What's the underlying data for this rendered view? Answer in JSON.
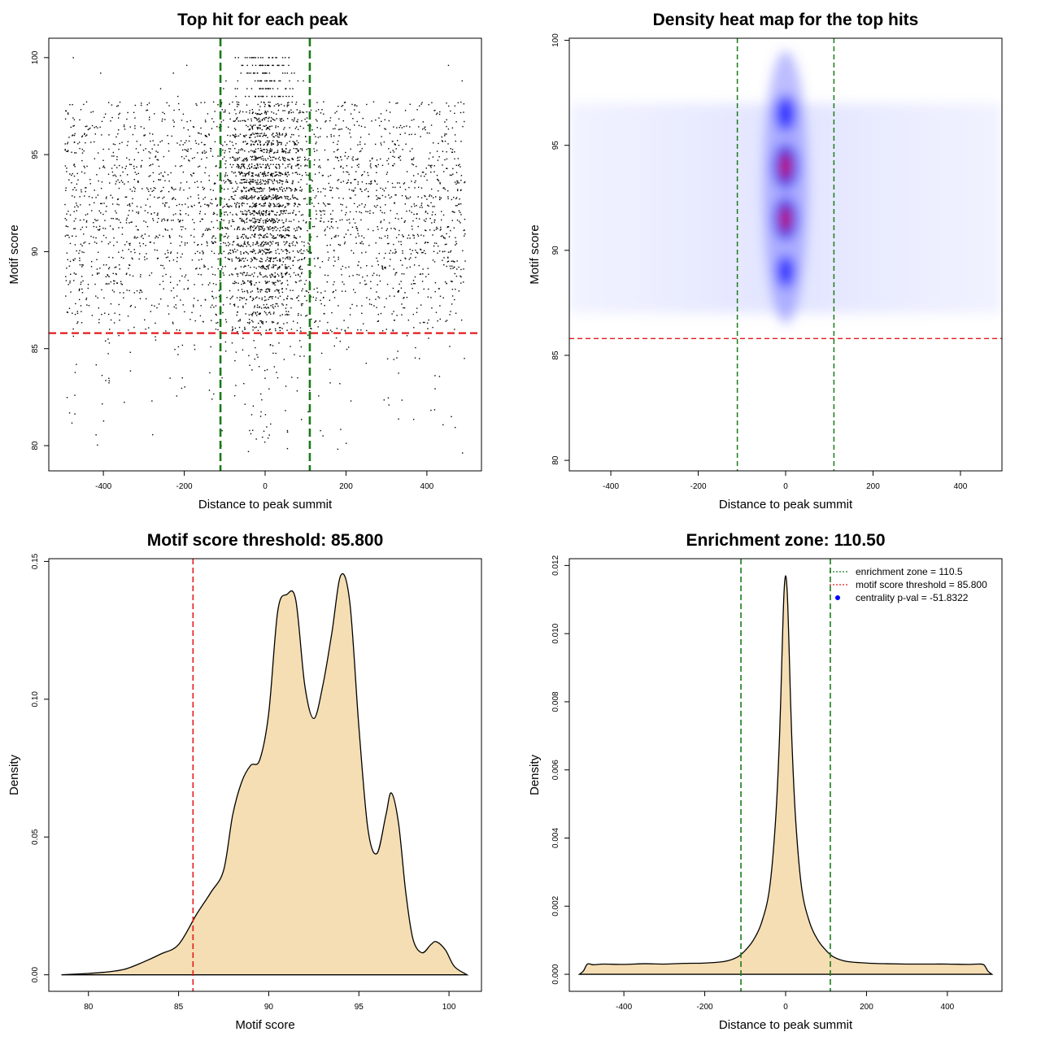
{
  "colors": {
    "threshold_line": "#e31a1c",
    "zone_line": "#1a7a1a",
    "density_fill": "#f5deb3",
    "heat_low": "#ffffff",
    "heat_mid": "#0000ff",
    "heat_high": "#ff0000",
    "centrality_marker": "#0000ff"
  },
  "chart_data": [
    {
      "type": "scatter",
      "title": "Top hit for each peak",
      "xlabel": "Distance to peak summit",
      "ylabel": "Motif score",
      "xlim": [
        -535,
        535
      ],
      "ylim": [
        78.7,
        101
      ],
      "x_ticks": [
        -400,
        -200,
        0,
        200,
        400
      ],
      "y_ticks": [
        80,
        85,
        90,
        95,
        100
      ],
      "threshold_y": 85.8,
      "zone_x": [
        -110.5,
        110.5
      ],
      "point_distribution": {
        "x_range": [
          -495,
          495
        ],
        "score_levels": [
          86,
          86.4,
          86.8,
          87.2,
          87.6,
          88,
          88.4,
          88.8,
          89.2,
          89.6,
          90,
          90.4,
          90.8,
          91.2,
          91.6,
          92,
          92.4,
          92.8,
          93.2,
          93.6,
          94,
          94.4,
          94.8,
          95.2,
          95.6,
          96,
          96.4,
          96.8,
          97.2,
          97.6
        ],
        "dense_center_halfwidth": 100
      }
    },
    {
      "type": "heatmap",
      "title": "Density heat map for the top hits",
      "xlabel": "Distance to peak summit",
      "ylabel": "Motif score",
      "xlim": [
        -495,
        495
      ],
      "ylim": [
        79.5,
        100.1
      ],
      "x_ticks": [
        -400,
        -200,
        0,
        200,
        400
      ],
      "y_ticks": [
        80,
        85,
        90,
        95,
        100
      ],
      "threshold_y": 85.8,
      "zone_x": [
        -110.5,
        110.5
      ],
      "hotspots": [
        {
          "x": 0,
          "y": 94,
          "intensity": 1.0
        },
        {
          "x": 0,
          "y": 91.5,
          "intensity": 0.9
        },
        {
          "x": 0,
          "y": 96.5,
          "intensity": 0.55
        },
        {
          "x": 0,
          "y": 89,
          "intensity": 0.4
        }
      ]
    },
    {
      "type": "area",
      "title": "Motif score threshold: 85.800",
      "xlabel": "Motif score",
      "ylabel": "Density",
      "xlim": [
        77.8,
        101.8
      ],
      "ylim": [
        -0.006,
        0.151
      ],
      "x_ticks": [
        80,
        85,
        90,
        95,
        100
      ],
      "y_ticks": [
        0.0,
        0.05,
        0.1,
        0.15
      ],
      "y_tick_labels": [
        "0.00",
        "0.05",
        "0.10",
        "0.15"
      ],
      "threshold_x": 85.8,
      "x": [
        78.5,
        80,
        81,
        82,
        83,
        84,
        85,
        86,
        86.8,
        87.5,
        88,
        88.5,
        89,
        89.5,
        90,
        90.5,
        91,
        91.5,
        92,
        92.5,
        93,
        93.5,
        94,
        94.5,
        95,
        95.5,
        96,
        96.5,
        96.8,
        97.2,
        97.6,
        98,
        98.5,
        99,
        99.3,
        99.8,
        100.3,
        101
      ],
      "y": [
        0.0,
        0.0005,
        0.001,
        0.002,
        0.0045,
        0.0075,
        0.011,
        0.022,
        0.03,
        0.038,
        0.058,
        0.07,
        0.076,
        0.078,
        0.095,
        0.132,
        0.138,
        0.136,
        0.105,
        0.093,
        0.105,
        0.124,
        0.145,
        0.135,
        0.09,
        0.053,
        0.044,
        0.058,
        0.066,
        0.055,
        0.03,
        0.013,
        0.008,
        0.011,
        0.012,
        0.009,
        0.003,
        0.0
      ]
    },
    {
      "type": "area",
      "title": "Enrichment zone: 110.50",
      "xlabel": "Distance to peak summit",
      "ylabel": "Density",
      "xlim": [
        -535,
        535
      ],
      "ylim": [
        -0.0005,
        0.0122
      ],
      "x_ticks": [
        -400,
        -200,
        0,
        200,
        400
      ],
      "y_ticks": [
        0.0,
        0.002,
        0.004,
        0.006,
        0.008,
        0.01,
        0.012
      ],
      "y_tick_labels": [
        "0.000",
        "0.002",
        "0.004",
        "0.006",
        "0.008",
        "0.010",
        "0.012"
      ],
      "zone_x": [
        -110.5,
        110.5
      ],
      "x": [
        -510,
        -500,
        -490,
        -475,
        -450,
        -400,
        -350,
        -300,
        -250,
        -200,
        -150,
        -120,
        -100,
        -80,
        -60,
        -40,
        -25,
        -15,
        -8,
        -4,
        0,
        4,
        8,
        15,
        25,
        40,
        60,
        80,
        100,
        120,
        150,
        200,
        250,
        300,
        350,
        400,
        450,
        475,
        490,
        500,
        510
      ],
      "y": [
        0.0,
        0.0001,
        0.0003,
        0.00028,
        0.0003,
        0.00029,
        0.00031,
        0.0003,
        0.00032,
        0.00033,
        0.00038,
        0.0005,
        0.0007,
        0.001,
        0.0015,
        0.0025,
        0.0045,
        0.007,
        0.0098,
        0.0112,
        0.0117,
        0.0112,
        0.0098,
        0.007,
        0.0045,
        0.0025,
        0.0015,
        0.001,
        0.0007,
        0.0005,
        0.00038,
        0.00033,
        0.00031,
        0.0003,
        0.0003,
        0.0003,
        0.00029,
        0.0003,
        0.00028,
        0.0001,
        0.0
      ],
      "legend": {
        "position": "top-right",
        "entries": [
          {
            "label": "enrichment zone = 110.5",
            "style": "dotted-green"
          },
          {
            "label": "motif score threshold = 85.800",
            "style": "dotted-red"
          },
          {
            "label": "centrality p-val = -51.8322",
            "style": "dot-blue"
          }
        ]
      }
    }
  ]
}
